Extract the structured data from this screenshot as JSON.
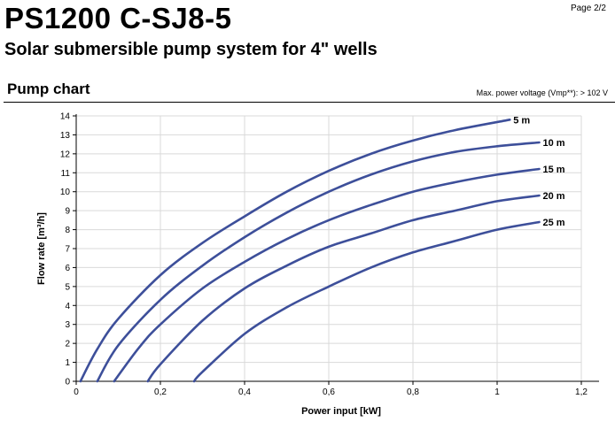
{
  "header": {
    "title": "PS1200 C-SJ8-5",
    "subtitle": "Solar submersible pump system for 4\" wells",
    "page": "Page 2/2",
    "section_title": "Pump chart",
    "note": "Max. power voltage (Vmp**): > 102 V"
  },
  "colors": {
    "line": "#3d4f9a",
    "grid": "#d9d9d9"
  },
  "chart_data": {
    "type": "line",
    "xlabel": "Power input [kW]",
    "ylabel": "Flow rate [m³/h]",
    "xlim": [
      0,
      1.2
    ],
    "ylim": [
      0,
      14
    ],
    "xticks": [
      0,
      0.2,
      0.4,
      0.6,
      0.8,
      1.0,
      1.2
    ],
    "xtick_labels": [
      "0",
      "0,2",
      "0,4",
      "0,6",
      "0,8",
      "1",
      "1,2"
    ],
    "yticks": [
      0,
      1,
      2,
      3,
      4,
      5,
      6,
      7,
      8,
      9,
      10,
      11,
      12,
      13,
      14
    ],
    "ytick_labels": [
      "0",
      "1",
      "2",
      "3",
      "4",
      "5",
      "6",
      "7",
      "8",
      "9",
      "10",
      "11",
      "12",
      "13",
      "14"
    ],
    "grid": true,
    "series": [
      {
        "name": "5 m",
        "x": [
          0.01,
          0.05,
          0.1,
          0.2,
          0.3,
          0.4,
          0.5,
          0.6,
          0.7,
          0.8,
          0.9,
          1.03
        ],
        "y": [
          0,
          1.7,
          3.3,
          5.6,
          7.3,
          8.7,
          10.0,
          11.1,
          12.0,
          12.7,
          13.25,
          13.8
        ]
      },
      {
        "name": "10 m",
        "x": [
          0.05,
          0.1,
          0.2,
          0.3,
          0.4,
          0.5,
          0.6,
          0.7,
          0.8,
          0.9,
          1.0,
          1.1
        ],
        "y": [
          0,
          1.9,
          4.3,
          6.1,
          7.6,
          8.9,
          10.0,
          10.9,
          11.6,
          12.1,
          12.4,
          12.6
        ]
      },
      {
        "name": "15 m",
        "x": [
          0.09,
          0.15,
          0.2,
          0.3,
          0.4,
          0.5,
          0.6,
          0.7,
          0.8,
          0.9,
          1.0,
          1.1
        ],
        "y": [
          0,
          1.8,
          3.0,
          4.9,
          6.3,
          7.5,
          8.5,
          9.3,
          10.0,
          10.5,
          10.9,
          11.2
        ]
      },
      {
        "name": "20 m",
        "x": [
          0.17,
          0.2,
          0.3,
          0.4,
          0.5,
          0.6,
          0.7,
          0.8,
          0.9,
          1.0,
          1.1
        ],
        "y": [
          0,
          0.9,
          3.2,
          4.9,
          6.1,
          7.1,
          7.8,
          8.5,
          9.0,
          9.5,
          9.8
        ]
      },
      {
        "name": "25 m",
        "x": [
          0.28,
          0.3,
          0.4,
          0.5,
          0.6,
          0.7,
          0.8,
          0.9,
          1.0,
          1.1
        ],
        "y": [
          0,
          0.5,
          2.5,
          3.9,
          5.0,
          6.0,
          6.8,
          7.4,
          8.0,
          8.4
        ]
      }
    ]
  }
}
